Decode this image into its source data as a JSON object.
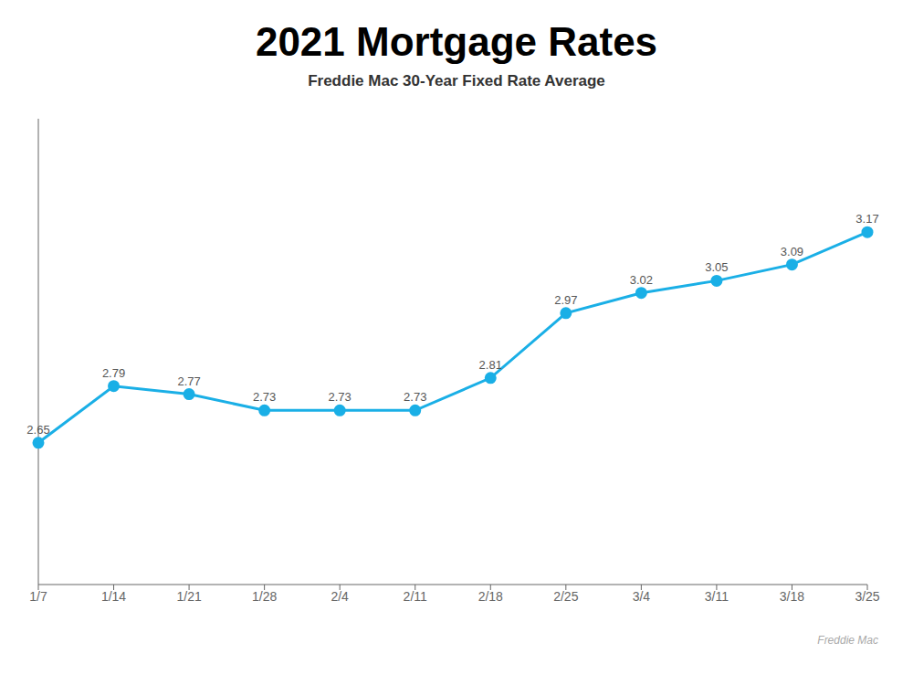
{
  "chart_data": {
    "type": "line",
    "title": "2021 Mortgage Rates",
    "subtitle": "Freddie Mac 30-Year Fixed Rate Average",
    "annotations": [
      "Freddie Mac"
    ],
    "categories": [
      "1/7",
      "1/14",
      "1/21",
      "1/28",
      "2/4",
      "2/11",
      "2/18",
      "2/25",
      "3/4",
      "3/11",
      "3/18",
      "3/25"
    ],
    "values": [
      2.65,
      2.79,
      2.77,
      2.73,
      2.73,
      2.73,
      2.81,
      2.97,
      3.02,
      3.05,
      3.09,
      3.17
    ],
    "color": "#1AAFE6",
    "marker": "circle",
    "ylim": [
      2.3,
      3.45
    ],
    "grid": false,
    "data_labels": true,
    "tick_labels": "x"
  }
}
